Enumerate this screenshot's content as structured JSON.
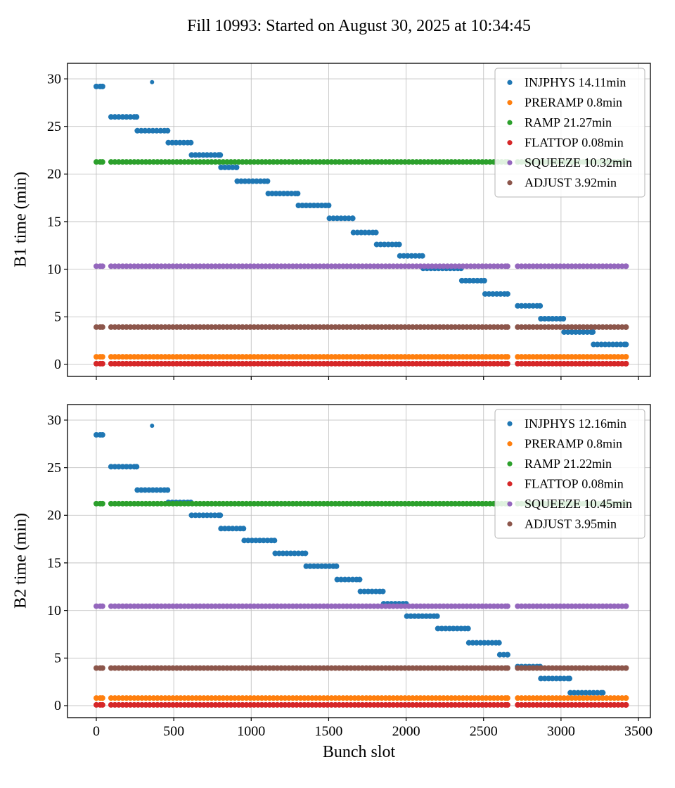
{
  "title": "Fill 10993: Started on August 30, 2025 at 10:34:45",
  "chart_data": [
    {
      "type": "scatter",
      "subplot": "top",
      "ylabel": "B1 time (min)",
      "xlabel": "",
      "xlim": [
        -186,
        3577
      ],
      "ylim": [
        -1.26,
        31.63
      ],
      "xticks": [
        0,
        500,
        1000,
        1500,
        2000,
        2500,
        3000,
        3500
      ],
      "yticks": [
        0,
        5,
        10,
        15,
        20,
        25,
        30
      ],
      "grid": true,
      "legend_position": "upper right",
      "x_segments": [
        [
          0,
          40
        ],
        [
          95,
          2655
        ],
        [
          2720,
          3420
        ]
      ],
      "series": [
        {
          "name": "INJPHYS 14.11min",
          "color": "#1f77b4",
          "steps": [
            [
              0,
              40,
              29.2
            ],
            [
              95,
              260,
              26.0
            ],
            [
              265,
              460,
              24.55
            ],
            [
              465,
              610,
              23.3
            ],
            [
              615,
              800,
              22.0
            ],
            [
              805,
              905,
              20.7
            ],
            [
              910,
              1105,
              19.25
            ],
            [
              1110,
              1300,
              17.95
            ],
            [
              1305,
              1500,
              16.7
            ],
            [
              1505,
              1655,
              15.35
            ],
            [
              1660,
              1805,
              13.85
            ],
            [
              1810,
              1955,
              12.6
            ],
            [
              1960,
              2105,
              11.4
            ],
            [
              2110,
              2355,
              10.1
            ],
            [
              2360,
              2505,
              8.8
            ],
            [
              2510,
              2655,
              7.4
            ],
            [
              2720,
              2865,
              6.15
            ],
            [
              2870,
              3015,
              4.8
            ],
            [
              3020,
              3205,
              3.4
            ],
            [
              3210,
              3420,
              2.1
            ]
          ],
          "points": [
            [
              360,
              29.65
            ]
          ]
        },
        {
          "name": "PRERAMP 0.8min",
          "color": "#ff7f0e",
          "y": 0.8
        },
        {
          "name": "RAMP 21.27min",
          "color": "#2ca02c",
          "y": 21.27
        },
        {
          "name": "FLATTOP 0.08min",
          "color": "#d62728",
          "y": 0.08
        },
        {
          "name": "SQUEEZE 10.32min",
          "color": "#9467bd",
          "y": 10.32
        },
        {
          "name": "ADJUST 3.92min",
          "color": "#8c564b",
          "y": 3.92
        }
      ]
    },
    {
      "type": "scatter",
      "subplot": "bottom",
      "ylabel": "B2 time (min)",
      "xlabel": "Bunch slot",
      "xlim": [
        -186,
        3577
      ],
      "ylim": [
        -1.26,
        31.63
      ],
      "xticks": [
        0,
        500,
        1000,
        1500,
        2000,
        2500,
        3000,
        3500
      ],
      "yticks": [
        0,
        5,
        10,
        15,
        20,
        25,
        30
      ],
      "grid": true,
      "legend_position": "upper right",
      "x_segments": [
        [
          0,
          40
        ],
        [
          95,
          2655
        ],
        [
          2720,
          3420
        ]
      ],
      "series": [
        {
          "name": "INJPHYS 12.16min",
          "color": "#1f77b4",
          "steps": [
            [
              0,
              40,
              28.45
            ],
            [
              95,
              260,
              25.1
            ],
            [
              265,
              460,
              22.65
            ],
            [
              465,
              610,
              21.35
            ],
            [
              615,
              800,
              20.0
            ],
            [
              805,
              950,
              18.6
            ],
            [
              955,
              1150,
              17.35
            ],
            [
              1155,
              1350,
              16.0
            ],
            [
              1355,
              1550,
              14.65
            ],
            [
              1555,
              1700,
              13.25
            ],
            [
              1705,
              1850,
              12.0
            ],
            [
              1855,
              2000,
              10.7
            ],
            [
              2005,
              2200,
              9.4
            ],
            [
              2205,
              2400,
              8.1
            ],
            [
              2405,
              2600,
              6.6
            ],
            [
              2605,
              2655,
              5.35
            ],
            [
              2720,
              2865,
              4.1
            ],
            [
              2870,
              3055,
              2.85
            ],
            [
              3060,
              3270,
              1.35
            ]
          ],
          "points": [
            [
              360,
              29.4
            ]
          ]
        },
        {
          "name": "PRERAMP 0.8min",
          "color": "#ff7f0e",
          "y": 0.8
        },
        {
          "name": "RAMP 21.22min",
          "color": "#2ca02c",
          "y": 21.22
        },
        {
          "name": "FLATTOP 0.08min",
          "color": "#d62728",
          "y": 0.08
        },
        {
          "name": "SQUEEZE 10.45min",
          "color": "#9467bd",
          "y": 10.45
        },
        {
          "name": "ADJUST 3.95min",
          "color": "#8c564b",
          "y": 3.95
        }
      ]
    }
  ]
}
